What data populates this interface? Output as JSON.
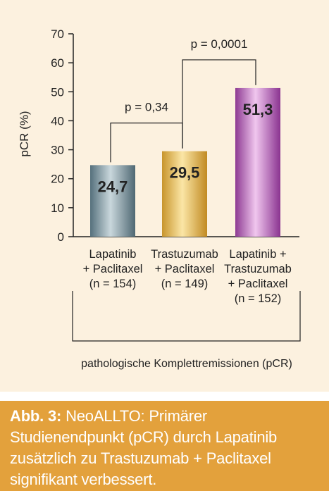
{
  "chart_data": {
    "type": "bar",
    "ylabel": "pCR (%)",
    "xlabel": "pathologische Komplettremissionen (pCR)",
    "ylim": [
      0,
      70
    ],
    "yticks": [
      "0",
      "10",
      "20",
      "30",
      "40",
      "50",
      "60",
      "70"
    ],
    "grid": false,
    "categories": [
      [
        "Lapatinib",
        "+ Paclitaxel",
        "(n = 154)"
      ],
      [
        "Trastuzumab",
        "+ Paclitaxel",
        "(n = 149)"
      ],
      [
        "Lapatinib +",
        "Trastuzumab",
        "+ Paclitaxel",
        "(n = 152)"
      ]
    ],
    "values": [
      24.7,
      29.5,
      51.3
    ],
    "data_labels": [
      "24,7",
      "29,5",
      "51,3"
    ],
    "bar_colors": [
      "#7e95a0",
      "#e4bb5a",
      "#b060b4"
    ],
    "annotations": [
      {
        "text": "p = 0,34",
        "from": 0,
        "to": 1
      },
      {
        "text": "p = 0,0001",
        "from": 1,
        "to": 2
      }
    ]
  },
  "caption": {
    "label": "Abb. 3:",
    "text": " NeoALLTO: Primärer Studienendpunkt (pCR) durch Lapatinib zusätzlich zu Trastuzumab + Paclitaxel signifikant verbessert."
  }
}
